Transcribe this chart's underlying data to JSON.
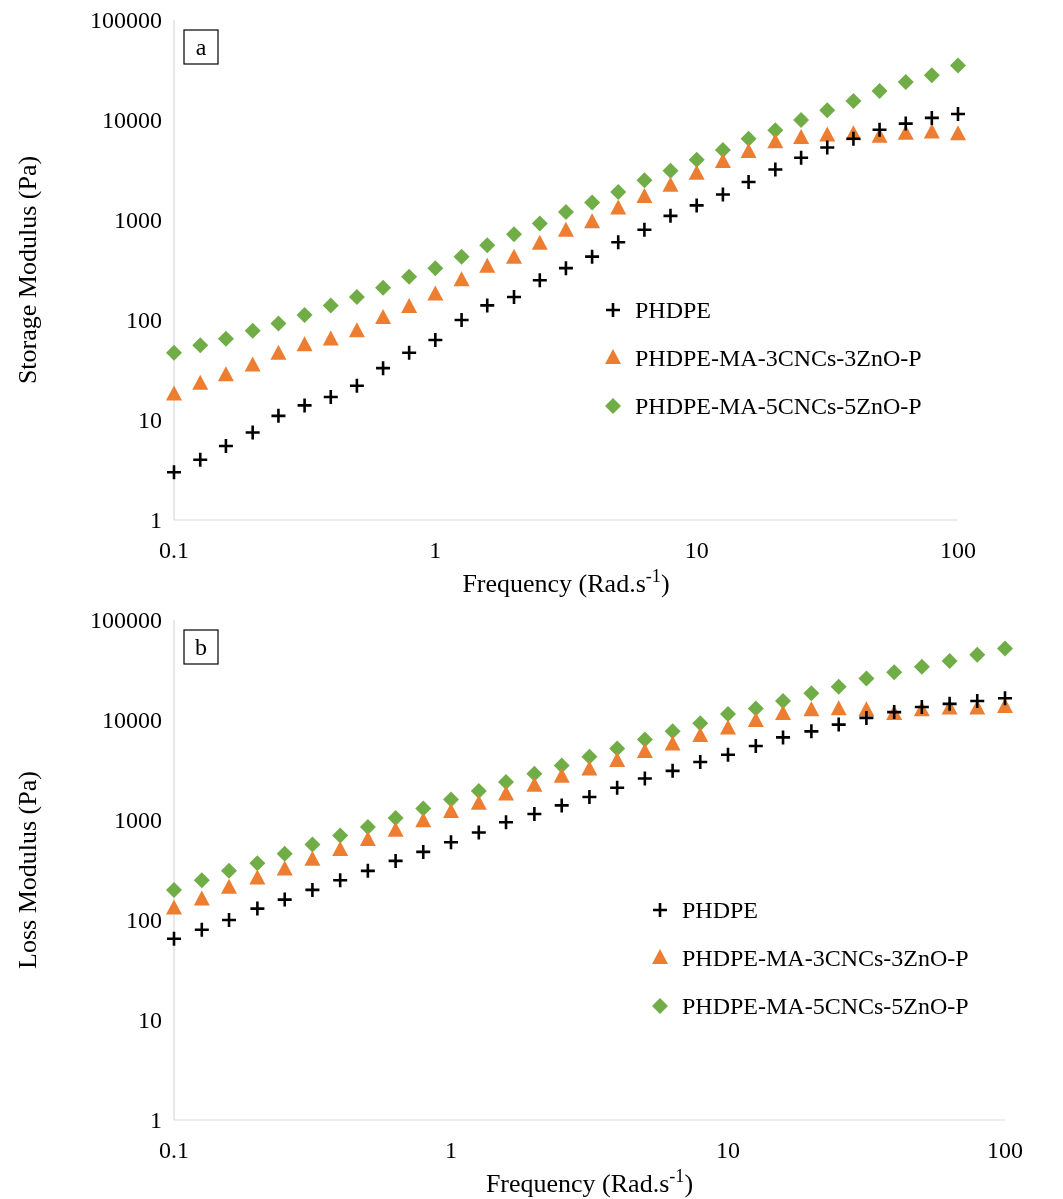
{
  "chart_data": [
    {
      "type": "scatter",
      "ylabel": "Storage  Modulus (Pa)",
      "xlabel": "Frequency (Rad.s$^{-1}$)",
      "annotations": [
        "a"
      ],
      "log": "xy",
      "grid": false,
      "legend": "right",
      "xlim": [
        0.1,
        100
      ],
      "xticks": [
        0.1,
        1,
        10,
        100
      ],
      "ylim": [
        1,
        100000
      ],
      "yticks": [
        1,
        10,
        100,
        1000,
        10000,
        100000
      ],
      "x": [
        0.1,
        0.126,
        0.158,
        0.2,
        0.251,
        0.316,
        0.398,
        0.501,
        0.631,
        0.794,
        1,
        1.26,
        1.58,
        2,
        2.51,
        3.16,
        3.98,
        5.01,
        6.31,
        7.94,
        10,
        12.6,
        15.8,
        20,
        25.1,
        31.6,
        39.8,
        50.1,
        63.1,
        79.4,
        100
      ],
      "series": [
        {
          "name": "PHDPE",
          "color": "#000000",
          "marker": "cross",
          "values": [
            3,
            4,
            5.5,
            7.5,
            11,
            14,
            17,
            22,
            33,
            47,
            63,
            100,
            140,
            170,
            250,
            330,
            430,
            600,
            800,
            1100,
            1400,
            1800,
            2400,
            3200,
            4200,
            5300,
            6500,
            8000,
            9200,
            10500,
            11500
          ]
        },
        {
          "name": "PHDPE-MA-3CNCs-3ZnO-P",
          "color": "#ed7d31",
          "marker": "triangle",
          "values": [
            18,
            23,
            28,
            35,
            46,
            56,
            64,
            77,
            105,
            135,
            180,
            250,
            340,
            420,
            580,
            780,
            950,
            1300,
            1700,
            2200,
            2900,
            3800,
            4800,
            6000,
            6600,
            7000,
            7200,
            6800,
            7300,
            7500,
            7200
          ]
        },
        {
          "name": "PHDPE-MA-5CNCs-5ZnO-P",
          "color": "#70ad47",
          "marker": "diamond",
          "values": [
            47,
            56,
            65,
            78,
            92,
            112,
            140,
            170,
            210,
            270,
            330,
            430,
            560,
            720,
            920,
            1200,
            1500,
            1900,
            2500,
            3100,
            4000,
            5000,
            6500,
            7900,
            10000,
            12500,
            15500,
            19500,
            24000,
            28000,
            35000
          ]
        }
      ]
    },
    {
      "type": "scatter",
      "ylabel": "Loss  Modulus (Pa)",
      "xlabel": "Frequency (Rad.s$^{-1}$)",
      "annotations": [
        "b"
      ],
      "log": "xy",
      "grid": false,
      "legend": "right",
      "xlim": [
        0.1,
        100
      ],
      "xticks": [
        0.1,
        1,
        10,
        100
      ],
      "ylim": [
        1,
        100000
      ],
      "yticks": [
        1,
        10,
        100,
        1000,
        10000,
        100000
      ],
      "x": [
        0.1,
        0.126,
        0.158,
        0.2,
        0.251,
        0.316,
        0.398,
        0.501,
        0.631,
        0.794,
        1,
        1.26,
        1.58,
        2,
        2.51,
        3.16,
        3.98,
        5.01,
        6.31,
        7.94,
        10,
        12.6,
        15.8,
        20,
        25.1,
        31.6,
        39.8,
        50.1,
        63.1,
        79.4,
        100
      ],
      "series": [
        {
          "name": "PHDPE",
          "color": "#000000",
          "marker": "cross",
          "values": [
            65,
            80,
            100,
            130,
            160,
            200,
            250,
            310,
            390,
            480,
            600,
            750,
            950,
            1150,
            1400,
            1700,
            2100,
            2600,
            3100,
            3800,
            4500,
            5500,
            6700,
            7700,
            9000,
            10500,
            12000,
            13500,
            14500,
            15500,
            16500
          ]
        },
        {
          "name": "PHDPE-MA-3CNCs-3ZnO-P",
          "color": "#ed7d31",
          "marker": "triangle",
          "values": [
            130,
            160,
            210,
            260,
            320,
            400,
            500,
            630,
            780,
            970,
            1200,
            1450,
            1800,
            2200,
            2700,
            3200,
            3900,
            4800,
            5700,
            6900,
            8200,
            9800,
            11500,
            12500,
            12800,
            12500,
            11500,
            12500,
            13000,
            13000,
            13500
          ]
        },
        {
          "name": "PHDPE-MA-5CNCs-5ZnO-P",
          "color": "#70ad47",
          "marker": "diamond",
          "values": [
            200,
            250,
            310,
            370,
            460,
            570,
            700,
            850,
            1050,
            1300,
            1600,
            1950,
            2400,
            2900,
            3500,
            4300,
            5200,
            6400,
            7700,
            9300,
            11500,
            13000,
            15500,
            18500,
            21500,
            26000,
            30000,
            34000,
            39000,
            45000,
            52000
          ]
        }
      ]
    }
  ]
}
